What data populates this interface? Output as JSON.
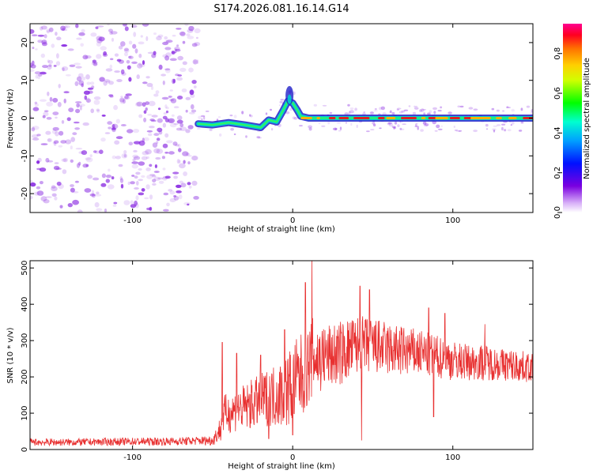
{
  "title": "S174.2026.081.16.14.G14",
  "colors": {
    "snr_line": "#e83030",
    "ridge_low": "#2020c8",
    "ridge_mid": "#00d0d0",
    "ridge_high": "#e02020",
    "scatter": "#8a2be2"
  },
  "chart_data": [
    {
      "type": "heatmap",
      "name": "spectrogram",
      "xlabel": "Height of straight line (km)",
      "ylabel": "Frequency (Hz)",
      "xlim": [
        -164,
        150
      ],
      "ylim": [
        -25,
        25
      ],
      "xticks": [
        -100,
        0,
        100
      ],
      "xtick_labels": [
        "-100",
        "0",
        "100"
      ],
      "yticks": [
        -20,
        -10,
        0,
        10,
        20
      ],
      "ytick_labels": [
        "-20",
        "-10",
        "0",
        "10",
        "20"
      ],
      "noise_region_x": [
        -164,
        -59
      ],
      "ridge": {
        "x": [
          -59,
          -50,
          -40,
          -30,
          -20,
          -15,
          -10,
          -6,
          -3,
          0,
          3,
          5,
          10,
          20,
          40,
          60,
          80,
          100,
          120,
          150
        ],
        "y": [
          -1.5,
          -1.8,
          -1.2,
          -1.8,
          -2.5,
          -0.5,
          -1,
          2,
          4.5,
          4,
          2,
          0.5,
          0,
          0,
          0,
          0,
          0,
          0,
          0,
          0
        ]
      },
      "colorbar": {
        "label": "Normalized spectral amplitude",
        "range": [
          0.0,
          0.95
        ],
        "ticks": [
          0.0,
          0.2,
          0.4,
          0.6,
          0.8
        ],
        "tick_labels": [
          "0.0",
          "0.2",
          "0.4",
          "0.6",
          "0.8"
        ]
      }
    },
    {
      "type": "line",
      "name": "snr",
      "xlabel": "Height of straight line (km)",
      "ylabel": "SNR (10 * v/v)",
      "xlim": [
        -164,
        150
      ],
      "ylim": [
        0,
        520
      ],
      "xticks": [
        -100,
        0,
        100
      ],
      "xtick_labels": [
        "-100",
        "0",
        "100"
      ],
      "yticks": [
        0,
        100,
        200,
        300,
        400,
        500
      ],
      "ytick_labels": [
        "0",
        "100",
        "200",
        "300",
        "400",
        "500"
      ],
      "series": [
        {
          "name": "SNR",
          "x": [
            -164,
            -140,
            -120,
            -100,
            -80,
            -60,
            -50,
            -46,
            -44,
            -40,
            -35,
            -30,
            -25,
            -20,
            -15,
            -10,
            -5,
            0,
            5,
            10,
            13,
            15,
            20,
            30,
            40,
            50,
            60,
            70,
            80,
            90,
            100,
            110,
            120,
            130,
            140,
            150
          ],
          "mean": [
            20,
            20,
            21,
            22,
            22,
            24,
            25,
            50,
            95,
            100,
            110,
            115,
            125,
            135,
            145,
            150,
            160,
            180,
            200,
            230,
            260,
            250,
            255,
            265,
            285,
            285,
            275,
            270,
            265,
            255,
            245,
            240,
            240,
            235,
            230,
            225
          ],
          "amp": [
            10,
            10,
            10,
            11,
            11,
            12,
            14,
            30,
            55,
            55,
            60,
            65,
            70,
            75,
            80,
            90,
            100,
            115,
            120,
            110,
            110,
            110,
            90,
            90,
            85,
            80,
            75,
            70,
            65,
            60,
            55,
            50,
            50,
            45,
            45,
            40
          ],
          "peaks": [
            [
              -44,
              295
            ],
            [
              -35,
              265
            ],
            [
              -20,
              260
            ],
            [
              -5,
              330
            ],
            [
              8,
              460
            ],
            [
              12,
              525
            ],
            [
              42,
              450
            ],
            [
              48,
              440
            ],
            [
              85,
              390
            ],
            [
              95,
              375
            ],
            [
              120,
              345
            ]
          ],
          "dips": [
            [
              -45,
              25
            ],
            [
              -15,
              30
            ],
            [
              0,
              40
            ],
            [
              43,
              25
            ],
            [
              88,
              90
            ]
          ]
        }
      ]
    }
  ]
}
